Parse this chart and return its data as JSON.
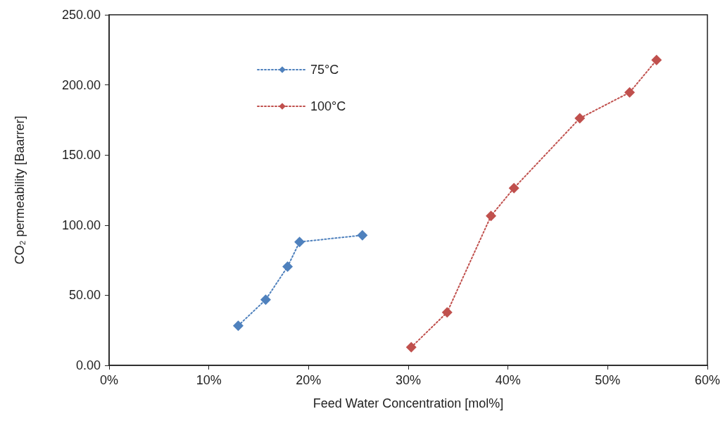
{
  "chart_data": {
    "type": "line",
    "xlabel": "Feed Water Concentration [mol%]",
    "ylabel": "CO₂ permeability [Baarrer]",
    "series": [
      {
        "name": "75°C",
        "color": "#4f81bd",
        "x": [
          12.95,
          15.7,
          17.9,
          19.1,
          25.4
        ],
        "values": [
          28.3,
          46.8,
          70.4,
          88.0,
          92.8
        ]
      },
      {
        "name": "100°C",
        "color": "#c0504d",
        "x": [
          30.3,
          33.9,
          38.3,
          40.6,
          47.2,
          52.2,
          54.9
        ],
        "values": [
          12.9,
          37.8,
          106.6,
          126.4,
          176.2,
          194.6,
          217.7
        ]
      }
    ],
    "xlim": [
      0,
      60
    ],
    "xticks": [
      {
        "value": 0,
        "label": "0%"
      },
      {
        "value": 10,
        "label": "10%"
      },
      {
        "value": 20,
        "label": "20%"
      },
      {
        "value": 30,
        "label": "30%"
      },
      {
        "value": 40,
        "label": "40%"
      },
      {
        "value": 50,
        "label": "50%"
      },
      {
        "value": 60,
        "label": "60%"
      }
    ],
    "ylim": [
      0,
      250
    ],
    "yticks": [
      {
        "value": 0,
        "label": "0.00"
      },
      {
        "value": 50,
        "label": "50.00"
      },
      {
        "value": 100,
        "label": "100.00"
      },
      {
        "value": 150,
        "label": "150.00"
      },
      {
        "value": 200,
        "label": "200.00"
      },
      {
        "value": 250,
        "label": "250.00"
      }
    ],
    "grid": false,
    "legend": "top left",
    "marker": "diamond",
    "line_style": "dotted"
  }
}
